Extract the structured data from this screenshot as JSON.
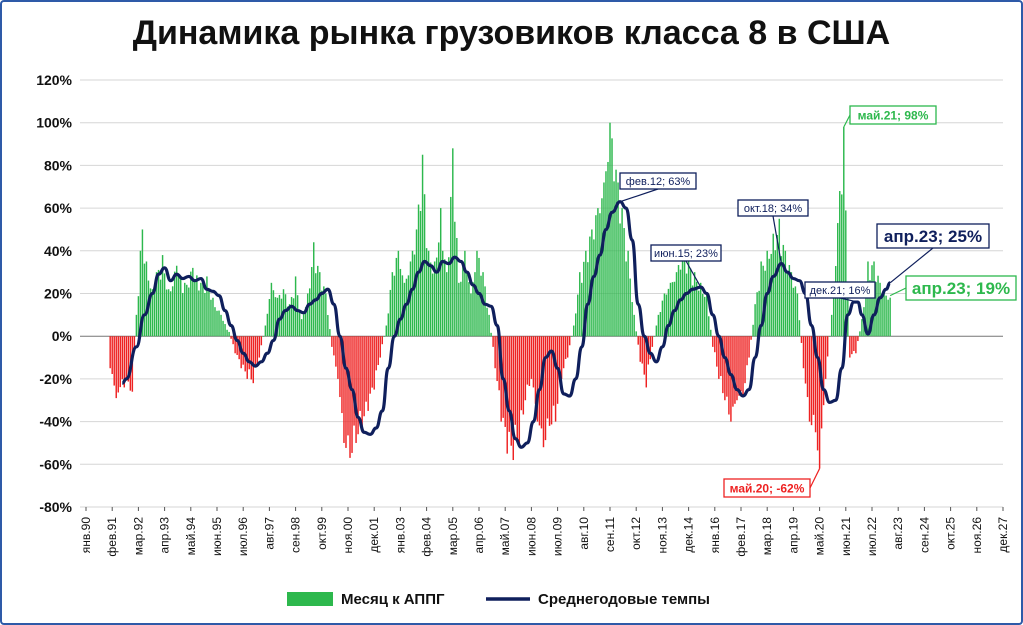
{
  "title": "Динамика рынка грузовиков класса 8 в США",
  "colors": {
    "bars_pos": "#2db84d",
    "bars_neg": "#ee2222",
    "avg_line": "#0f1f5c",
    "frame": "#2e5aa8"
  },
  "chart_data": {
    "type": "bar+line",
    "ylim": [
      -80,
      120
    ],
    "yticks": [
      "120%",
      "100%",
      "80%",
      "60%",
      "40%",
      "20%",
      "0%",
      "-20%",
      "-40%",
      "-60%",
      "-80%"
    ],
    "xticks": [
      "янв.90",
      "фев.91",
      "мар.92",
      "апр.93",
      "май.94",
      "июн.95",
      "июл.96",
      "авг.97",
      "сен.98",
      "окт.99",
      "ноя.00",
      "дек.01",
      "янв.03",
      "фев.04",
      "мар.05",
      "апр.06",
      "май.07",
      "июн.08",
      "июл.09",
      "авг.10",
      "сен.11",
      "окт.12",
      "ноя.13",
      "дек.14",
      "янв.16",
      "фев.17",
      "мар.18",
      "апр.19",
      "май.20",
      "июн.21",
      "июл.22",
      "авг.23",
      "сен.24",
      "окт.25",
      "ноя.26",
      "дек.27"
    ],
    "x_start": "1990-01",
    "legend": [
      "Месяц к АППГ",
      "Среднегодовые темпы"
    ],
    "monthly": [
      [
        1991,
        1,
        -15
      ],
      [
        1991,
        4,
        -29
      ],
      [
        1991,
        8,
        -24
      ],
      [
        1991,
        12,
        -26
      ],
      [
        1992,
        2,
        10
      ],
      [
        1992,
        4,
        40
      ],
      [
        1992,
        5,
        50
      ],
      [
        1992,
        7,
        35
      ],
      [
        1992,
        10,
        22
      ],
      [
        1992,
        12,
        30
      ],
      [
        1993,
        3,
        38
      ],
      [
        1993,
        6,
        22
      ],
      [
        1993,
        10,
        33
      ],
      [
        1994,
        2,
        25
      ],
      [
        1994,
        6,
        32
      ],
      [
        1994,
        10,
        25
      ],
      [
        1995,
        1,
        28
      ],
      [
        1995,
        4,
        18
      ],
      [
        1995,
        8,
        10
      ],
      [
        1995,
        12,
        2
      ],
      [
        1996,
        3,
        -8
      ],
      [
        1996,
        6,
        -15
      ],
      [
        1996,
        9,
        -20
      ],
      [
        1996,
        12,
        -22
      ],
      [
        1997,
        3,
        -10
      ],
      [
        1997,
        6,
        5
      ],
      [
        1997,
        9,
        25
      ],
      [
        1997,
        12,
        18
      ],
      [
        1998,
        3,
        22
      ],
      [
        1998,
        6,
        15
      ],
      [
        1998,
        9,
        28
      ],
      [
        1998,
        12,
        8
      ],
      [
        1999,
        3,
        20
      ],
      [
        1999,
        6,
        44
      ],
      [
        1999,
        9,
        30
      ],
      [
        1999,
        12,
        20
      ],
      [
        2000,
        3,
        -5
      ],
      [
        2000,
        6,
        -20
      ],
      [
        2000,
        9,
        -50
      ],
      [
        2000,
        12,
        -57
      ],
      [
        2001,
        3,
        -50
      ],
      [
        2001,
        6,
        -45
      ],
      [
        2001,
        9,
        -35
      ],
      [
        2001,
        12,
        -25
      ],
      [
        2002,
        3,
        -10
      ],
      [
        2002,
        6,
        5
      ],
      [
        2002,
        9,
        30
      ],
      [
        2002,
        12,
        40
      ],
      [
        2003,
        3,
        25
      ],
      [
        2003,
        6,
        35
      ],
      [
        2003,
        9,
        50
      ],
      [
        2003,
        12,
        85
      ],
      [
        2004,
        3,
        40
      ],
      [
        2004,
        6,
        35
      ],
      [
        2004,
        9,
        60
      ],
      [
        2004,
        12,
        30
      ],
      [
        2005,
        3,
        88
      ],
      [
        2005,
        6,
        25
      ],
      [
        2005,
        9,
        40
      ],
      [
        2005,
        12,
        20
      ],
      [
        2006,
        3,
        40
      ],
      [
        2006,
        6,
        30
      ],
      [
        2006,
        9,
        10
      ],
      [
        2006,
        12,
        -15
      ],
      [
        2007,
        3,
        -40
      ],
      [
        2007,
        6,
        -55
      ],
      [
        2007,
        9,
        -58
      ],
      [
        2007,
        12,
        -50
      ],
      [
        2008,
        3,
        -30
      ],
      [
        2008,
        6,
        -20
      ],
      [
        2008,
        9,
        -40
      ],
      [
        2008,
        12,
        -52
      ],
      [
        2009,
        3,
        -42
      ],
      [
        2009,
        6,
        -40
      ],
      [
        2009,
        9,
        -20
      ],
      [
        2009,
        12,
        -10
      ],
      [
        2010,
        3,
        5
      ],
      [
        2010,
        6,
        30
      ],
      [
        2010,
        9,
        40
      ],
      [
        2010,
        12,
        50
      ],
      [
        2011,
        3,
        60
      ],
      [
        2011,
        6,
        72
      ],
      [
        2011,
        9,
        100
      ],
      [
        2011,
        12,
        78
      ],
      [
        2012,
        3,
        60
      ],
      [
        2012,
        6,
        40
      ],
      [
        2012,
        9,
        10
      ],
      [
        2012,
        12,
        -12
      ],
      [
        2013,
        3,
        -24
      ],
      [
        2013,
        6,
        -5
      ],
      [
        2013,
        9,
        10
      ],
      [
        2013,
        12,
        20
      ],
      [
        2014,
        3,
        25
      ],
      [
        2014,
        6,
        30
      ],
      [
        2014,
        9,
        40
      ],
      [
        2014,
        12,
        35
      ],
      [
        2015,
        3,
        30
      ],
      [
        2015,
        6,
        25
      ],
      [
        2015,
        9,
        20
      ],
      [
        2015,
        12,
        -5
      ],
      [
        2016,
        3,
        -20
      ],
      [
        2016,
        6,
        -30
      ],
      [
        2016,
        9,
        -40
      ],
      [
        2016,
        12,
        -30
      ],
      [
        2017,
        3,
        -28
      ],
      [
        2017,
        6,
        -10
      ],
      [
        2017,
        9,
        15
      ],
      [
        2017,
        12,
        35
      ],
      [
        2018,
        3,
        40
      ],
      [
        2018,
        6,
        48
      ],
      [
        2018,
        9,
        55
      ],
      [
        2018,
        12,
        40
      ],
      [
        2019,
        3,
        30
      ],
      [
        2019,
        6,
        20
      ],
      [
        2019,
        9,
        -15
      ],
      [
        2019,
        12,
        -40
      ],
      [
        2020,
        3,
        -45
      ],
      [
        2020,
        5,
        -62
      ],
      [
        2020,
        8,
        -20
      ],
      [
        2020,
        11,
        10
      ],
      [
        2021,
        2,
        53
      ],
      [
        2021,
        5,
        98
      ],
      [
        2021,
        8,
        -10
      ],
      [
        2021,
        11,
        -8
      ],
      [
        2022,
        2,
        8
      ],
      [
        2022,
        5,
        35
      ],
      [
        2022,
        8,
        35
      ],
      [
        2022,
        11,
        25
      ],
      [
        2023,
        2,
        19
      ],
      [
        2023,
        4,
        19
      ]
    ],
    "average": [
      [
        1991,
        7,
        -22
      ],
      [
        1991,
        9,
        -20
      ],
      [
        1992,
        2,
        -5
      ],
      [
        1992,
        6,
        10
      ],
      [
        1992,
        10,
        20
      ],
      [
        1993,
        1,
        29
      ],
      [
        1993,
        4,
        32
      ],
      [
        1993,
        7,
        26
      ],
      [
        1993,
        10,
        29
      ],
      [
        1994,
        1,
        27
      ],
      [
        1994,
        4,
        28
      ],
      [
        1994,
        7,
        26
      ],
      [
        1994,
        10,
        27
      ],
      [
        1995,
        1,
        22
      ],
      [
        1995,
        4,
        21
      ],
      [
        1995,
        7,
        19
      ],
      [
        1995,
        10,
        12
      ],
      [
        1996,
        1,
        5
      ],
      [
        1996,
        4,
        -2
      ],
      [
        1996,
        7,
        -8
      ],
      [
        1996,
        10,
        -12
      ],
      [
        1997,
        1,
        -14
      ],
      [
        1997,
        4,
        -12
      ],
      [
        1997,
        7,
        -8
      ],
      [
        1997,
        10,
        -2
      ],
      [
        1998,
        1,
        8
      ],
      [
        1998,
        4,
        12
      ],
      [
        1998,
        7,
        14
      ],
      [
        1998,
        10,
        12
      ],
      [
        1999,
        1,
        11
      ],
      [
        1999,
        4,
        15
      ],
      [
        1999,
        7,
        17
      ],
      [
        1999,
        10,
        20
      ],
      [
        2000,
        1,
        22
      ],
      [
        2000,
        4,
        15
      ],
      [
        2000,
        7,
        0
      ],
      [
        2000,
        10,
        -15
      ],
      [
        2001,
        1,
        -25
      ],
      [
        2001,
        4,
        -38
      ],
      [
        2001,
        7,
        -45
      ],
      [
        2001,
        10,
        -46
      ],
      [
        2002,
        1,
        -43
      ],
      [
        2002,
        4,
        -35
      ],
      [
        2002,
        7,
        -15
      ],
      [
        2002,
        10,
        0
      ],
      [
        2003,
        1,
        8
      ],
      [
        2003,
        4,
        15
      ],
      [
        2003,
        7,
        22
      ],
      [
        2003,
        10,
        30
      ],
      [
        2004,
        1,
        35
      ],
      [
        2004,
        4,
        33
      ],
      [
        2004,
        7,
        30
      ],
      [
        2004,
        10,
        35
      ],
      [
        2005,
        1,
        34
      ],
      [
        2005,
        4,
        37
      ],
      [
        2005,
        7,
        35
      ],
      [
        2005,
        10,
        30
      ],
      [
        2006,
        1,
        24
      ],
      [
        2006,
        4,
        20
      ],
      [
        2006,
        7,
        15
      ],
      [
        2006,
        10,
        14
      ],
      [
        2007,
        1,
        5
      ],
      [
        2007,
        4,
        -20
      ],
      [
        2007,
        7,
        -35
      ],
      [
        2007,
        10,
        -48
      ],
      [
        2008,
        1,
        -52
      ],
      [
        2008,
        4,
        -50
      ],
      [
        2008,
        7,
        -40
      ],
      [
        2008,
        10,
        -25
      ],
      [
        2009,
        1,
        -10
      ],
      [
        2009,
        4,
        -7
      ],
      [
        2009,
        7,
        -15
      ],
      [
        2009,
        10,
        -27
      ],
      [
        2010,
        1,
        -28
      ],
      [
        2010,
        4,
        -20
      ],
      [
        2010,
        7,
        -5
      ],
      [
        2010,
        10,
        15
      ],
      [
        2011,
        1,
        28
      ],
      [
        2011,
        4,
        38
      ],
      [
        2011,
        7,
        50
      ],
      [
        2011,
        10,
        58
      ],
      [
        2012,
        2,
        63
      ],
      [
        2012,
        5,
        60
      ],
      [
        2012,
        8,
        45
      ],
      [
        2012,
        11,
        15
      ],
      [
        2013,
        2,
        0
      ],
      [
        2013,
        5,
        -8
      ],
      [
        2013,
        8,
        -12
      ],
      [
        2013,
        11,
        -5
      ],
      [
        2014,
        2,
        5
      ],
      [
        2014,
        5,
        12
      ],
      [
        2014,
        8,
        17
      ],
      [
        2014,
        11,
        20
      ],
      [
        2015,
        2,
        22
      ],
      [
        2015,
        6,
        23
      ],
      [
        2015,
        9,
        20
      ],
      [
        2015,
        12,
        10
      ],
      [
        2016,
        3,
        0
      ],
      [
        2016,
        6,
        -10
      ],
      [
        2016,
        9,
        -18
      ],
      [
        2016,
        12,
        -25
      ],
      [
        2017,
        3,
        -28
      ],
      [
        2017,
        6,
        -25
      ],
      [
        2017,
        9,
        -10
      ],
      [
        2017,
        12,
        5
      ],
      [
        2018,
        3,
        20
      ],
      [
        2018,
        6,
        28
      ],
      [
        2018,
        10,
        34
      ],
      [
        2019,
        1,
        30
      ],
      [
        2019,
        4,
        27
      ],
      [
        2019,
        7,
        26
      ],
      [
        2019,
        10,
        20
      ],
      [
        2020,
        1,
        5
      ],
      [
        2020,
        4,
        -10
      ],
      [
        2020,
        7,
        -25
      ],
      [
        2020,
        10,
        -31
      ],
      [
        2021,
        1,
        -30
      ],
      [
        2021,
        4,
        -15
      ],
      [
        2021,
        7,
        10
      ],
      [
        2021,
        10,
        16
      ],
      [
        2021,
        12,
        16
      ],
      [
        2022,
        2,
        10
      ],
      [
        2022,
        5,
        1
      ],
      [
        2022,
        8,
        10
      ],
      [
        2022,
        11,
        18
      ],
      [
        2023,
        2,
        22
      ],
      [
        2023,
        4,
        25
      ]
    ],
    "annotations": [
      {
        "label": "май.21; 98%",
        "series": "month"
      },
      {
        "label": "фев.12; 63%",
        "series": "avg"
      },
      {
        "label": "окт.18; 34%",
        "series": "avg"
      },
      {
        "label": "июн.15; 23%",
        "series": "avg"
      },
      {
        "label": "дек.21; 16%",
        "series": "avg"
      },
      {
        "label": "апр.23; 25%",
        "series": "avg"
      },
      {
        "label": "апр.23; 19%",
        "series": "month"
      },
      {
        "label": "май.20; -62%",
        "series": "month"
      }
    ]
  }
}
